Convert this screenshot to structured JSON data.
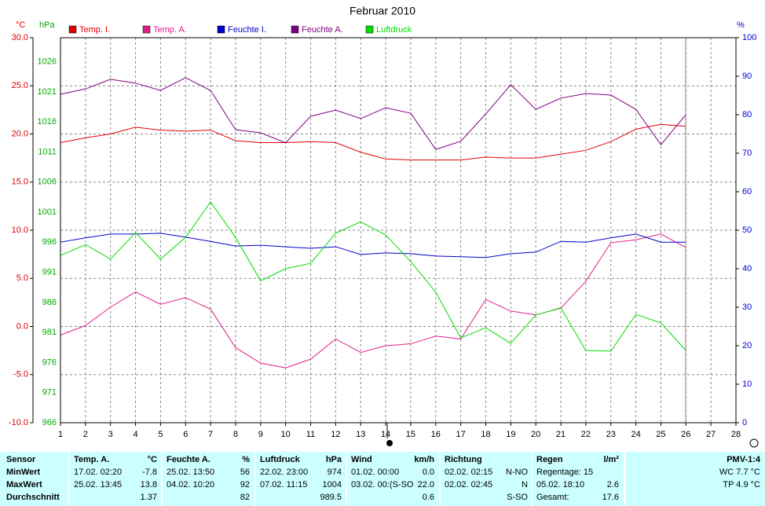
{
  "chart_data": {
    "type": "line",
    "title": "Februar 2010",
    "y_label": "°C",
    "y3_label": "hPa",
    "y2_label": "%",
    "x": [
      1,
      2,
      3,
      4,
      5,
      6,
      7,
      8,
      9,
      10,
      11,
      12,
      13,
      14,
      15,
      16,
      17,
      18,
      19,
      20,
      21,
      22,
      23,
      24,
      25,
      26
    ],
    "xlim": [
      1,
      28
    ],
    "xticks": [
      1,
      2,
      3,
      4,
      5,
      6,
      7,
      8,
      9,
      10,
      11,
      12,
      13,
      14,
      15,
      16,
      17,
      18,
      19,
      20,
      21,
      22,
      23,
      24,
      25,
      26,
      27,
      28
    ],
    "ylim": [
      -10,
      30
    ],
    "yticks": [
      {
        "value": -10,
        "label": "-10.0"
      },
      {
        "value": -5,
        "label": "-5.0"
      },
      {
        "value": 0,
        "label": "0.0"
      },
      {
        "value": 5,
        "label": "5.0"
      },
      {
        "value": 10,
        "label": "10.0"
      },
      {
        "value": 15,
        "label": "15.0"
      },
      {
        "value": 20,
        "label": "20.0"
      },
      {
        "value": 25,
        "label": "25.0"
      },
      {
        "value": 30,
        "label": "30.0"
      }
    ],
    "y2lim": [
      0,
      100
    ],
    "y2ticks": [
      0,
      10,
      20,
      30,
      40,
      50,
      60,
      70,
      80,
      90,
      100
    ],
    "y3lim": [
      966,
      1030
    ],
    "y3ticks": [
      966,
      971,
      976,
      981,
      986,
      991,
      996,
      1001,
      1006,
      1011,
      1016,
      1021,
      1026
    ],
    "grid": true,
    "series": [
      {
        "name": "Temp. I.",
        "color": "#e00000",
        "axis": "y",
        "values": [
          19.1,
          19.6,
          20.0,
          20.7,
          20.4,
          20.3,
          20.4,
          19.3,
          19.1,
          19.1,
          19.2,
          19.1,
          18.1,
          17.4,
          17.3,
          17.3,
          17.3,
          17.6,
          17.5,
          17.5,
          17.9,
          18.3,
          19.2,
          20.5,
          21.0,
          20.8
        ]
      },
      {
        "name": "Temp. A.",
        "color": "#e0208a",
        "axis": "y",
        "values": [
          -0.9,
          0.1,
          2.0,
          3.6,
          2.3,
          3.0,
          1.8,
          -2.2,
          -3.8,
          -4.3,
          -3.4,
          -1.3,
          -2.7,
          -2.0,
          -1.8,
          -1.0,
          -1.3,
          2.8,
          1.6,
          1.2,
          1.9,
          4.7,
          8.7,
          9.0,
          9.6,
          8.2
        ]
      },
      {
        "name": "Feuchte I.",
        "color": "#0000cc",
        "axis": "y2",
        "values": [
          46.9,
          48.0,
          49.0,
          49.0,
          49.2,
          48.2,
          47.1,
          45.9,
          46.1,
          45.7,
          45.3,
          45.7,
          43.7,
          44.1,
          43.9,
          43.3,
          43.1,
          42.9,
          43.9,
          44.3,
          47.1,
          46.9,
          48.0,
          49.0,
          46.9,
          46.9
        ]
      },
      {
        "name": "Feuchte A.",
        "color": "#800080",
        "axis": "y2",
        "values": [
          85.3,
          86.7,
          89.2,
          88.2,
          86.3,
          89.6,
          86.3,
          76.1,
          75.3,
          72.7,
          79.6,
          81.2,
          79.0,
          81.8,
          80.4,
          71.0,
          73.1,
          80.2,
          87.8,
          81.4,
          84.3,
          85.5,
          85.1,
          81.4,
          72.2,
          80.0
        ]
      },
      {
        "name": "Luftdruck",
        "color": "#00dd00",
        "axis": "y3",
        "values": [
          993.8,
          995.6,
          993.2,
          997.6,
          993.2,
          996.8,
          1002.7,
          996.8,
          989.6,
          991.6,
          992.5,
          997.5,
          999.4,
          997.2,
          992.8,
          987.7,
          980.1,
          981.8,
          979.2,
          983.9,
          985.1,
          978.0,
          977.9,
          984.0,
          982.6,
          978.0
        ]
      }
    ]
  },
  "stats": {
    "columns": [
      {
        "header": {
          "left": "Sensor"
        },
        "cells": [
          {
            "left": "MinWert"
          },
          {
            "left": "MaxWert"
          },
          {
            "left": "Durchschnitt"
          }
        ]
      },
      {
        "header": {
          "left": "Temp. A.",
          "right": "°C"
        },
        "cells": [
          {
            "left": "17.02.  02:20",
            "right": "-7.8"
          },
          {
            "left": "25.02.  13:45",
            "right": "13.8"
          },
          {
            "right": "1.37"
          }
        ]
      },
      {
        "header": {
          "left": "Feuchte A.",
          "right": "%"
        },
        "cells": [
          {
            "left": "25.02.  13:50",
            "right": "56"
          },
          {
            "left": "04.02.  10:20",
            "right": "92"
          },
          {
            "right": "82"
          }
        ]
      },
      {
        "header": {
          "left": "Luftdruck",
          "right": "hPa"
        },
        "cells": [
          {
            "left": "22.02.  23:00",
            "right": "974"
          },
          {
            "left": "07.02.  11:15",
            "right": "1004"
          },
          {
            "right": "989.5"
          }
        ]
      },
      {
        "header": {
          "left": "Wind",
          "right": "km/h"
        },
        "cells": [
          {
            "left": "01.02.  00:00",
            "right": "0.0"
          },
          {
            "left": "03.02.  00:(S-SO",
            "right": "22.0"
          },
          {
            "right": "0.6"
          }
        ]
      },
      {
        "header": {
          "left": "Richtung"
        },
        "cells": [
          {
            "left": "02.02.  02:15",
            "right": "N-NO"
          },
          {
            "left": "02.02.  02:45",
            "right": "N"
          },
          {
            "right": "S-SO"
          }
        ]
      },
      {
        "header": {
          "left": "Regen",
          "right": "l/m²"
        },
        "cells": [
          {
            "left": "Regentage: 15"
          },
          {
            "left": "05.02.  18:10",
            "right": "2.6"
          },
          {
            "left": "Gesamt:",
            "right": "17.6"
          }
        ]
      },
      {
        "header": {
          "right": "PMV-1:4"
        },
        "cells": [
          {
            "right": "WC 7.7 °C"
          },
          {
            "right": "TP 4.9 °C"
          }
        ]
      }
    ]
  }
}
